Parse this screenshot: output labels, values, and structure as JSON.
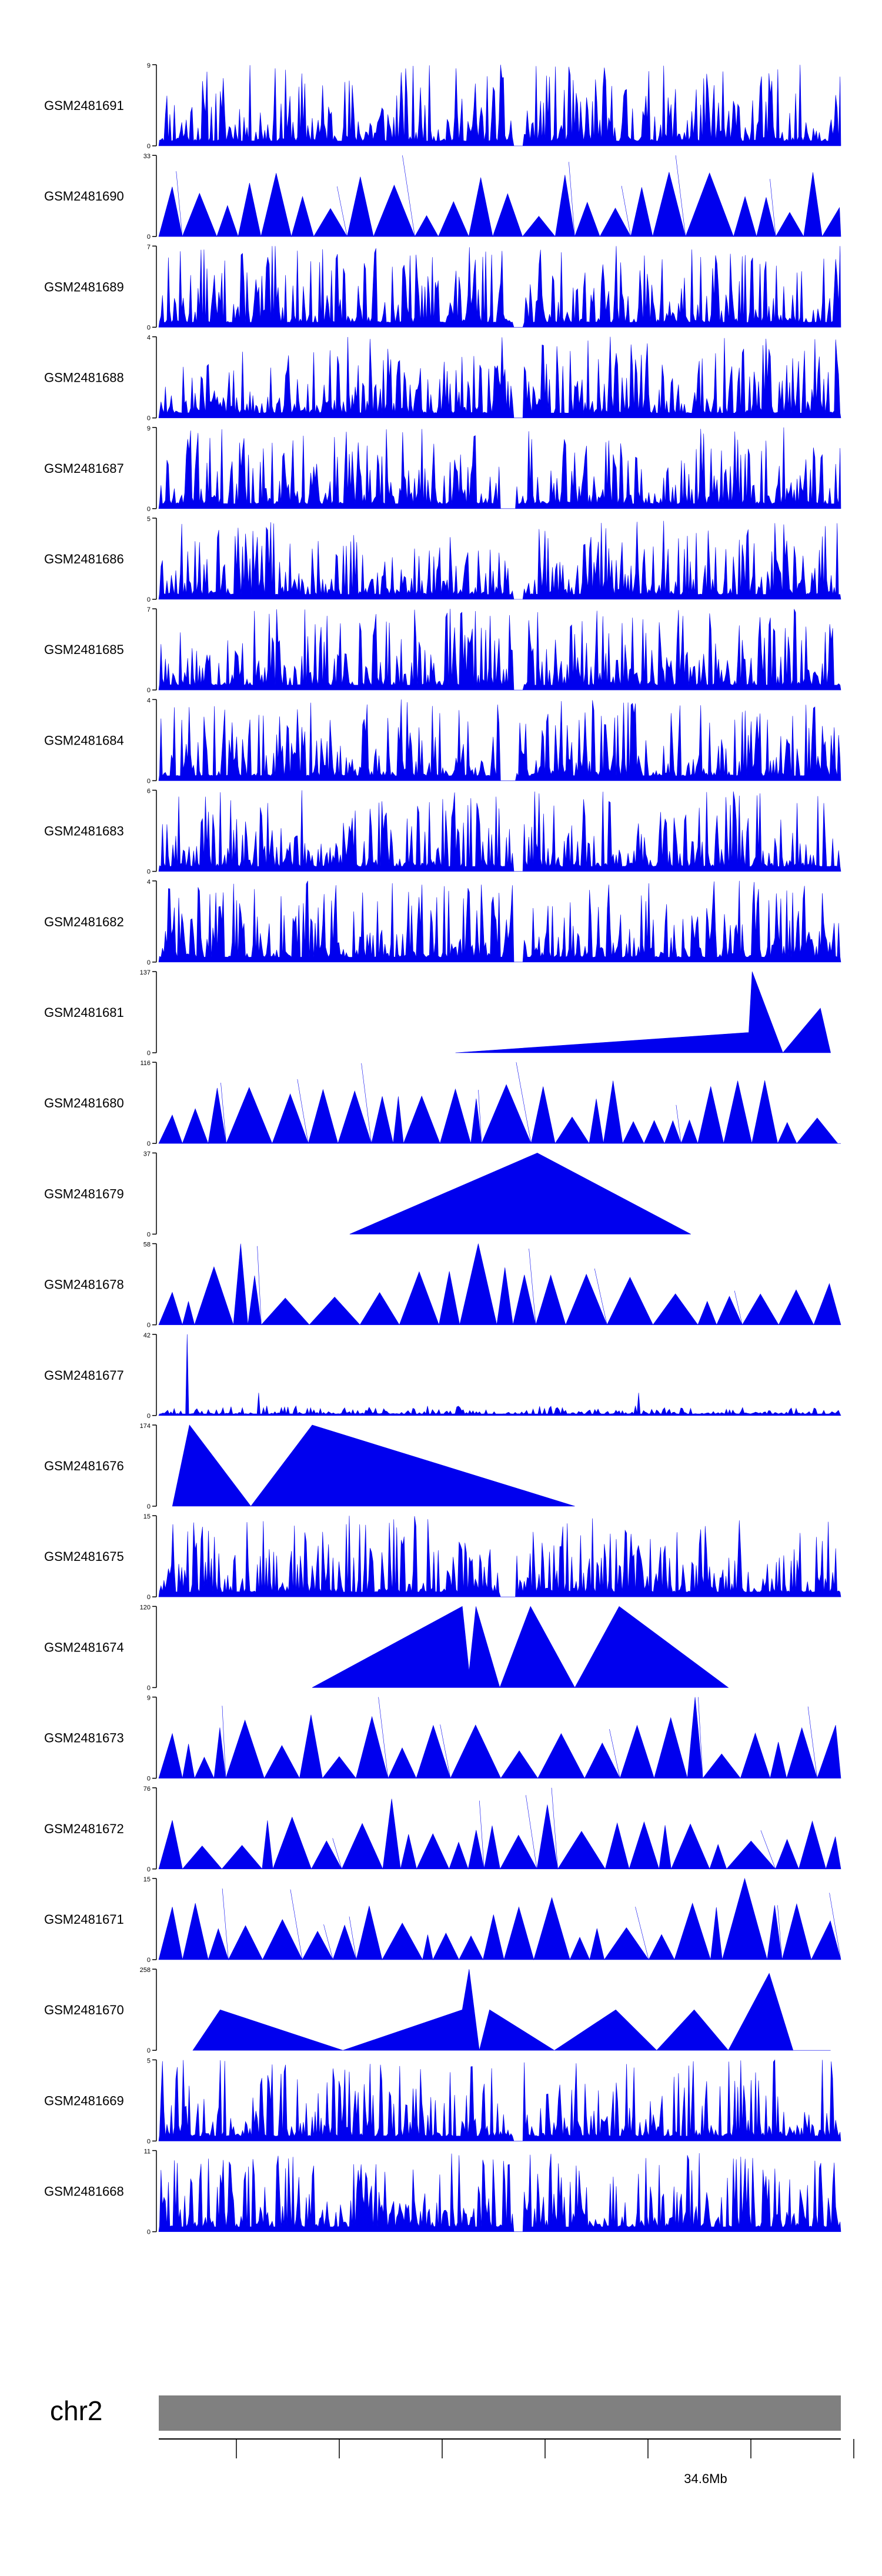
{
  "chart_data": {
    "type": "area",
    "title": "",
    "fill_color": "#0000ee",
    "axis_color": "#000000",
    "tracks": [
      {
        "name": "GSM2481691",
        "ymax": 9,
        "style": "dense",
        "seed": 11
      },
      {
        "name": "GSM2481690",
        "ymax": 33,
        "style": "spiky",
        "seed": 12
      },
      {
        "name": "GSM2481689",
        "ymax": 7,
        "style": "dense",
        "seed": 13
      },
      {
        "name": "GSM2481688",
        "ymax": 4,
        "style": "dense",
        "seed": 14
      },
      {
        "name": "GSM2481687",
        "ymax": 9,
        "style": "dense",
        "seed": 15
      },
      {
        "name": "GSM2481686",
        "ymax": 5,
        "style": "dense",
        "seed": 16
      },
      {
        "name": "GSM2481685",
        "ymax": 7,
        "style": "dense",
        "seed": 17
      },
      {
        "name": "GSM2481684",
        "ymax": 4,
        "style": "dense",
        "seed": 18
      },
      {
        "name": "GSM2481683",
        "ymax": 6,
        "style": "dense",
        "seed": 19
      },
      {
        "name": "GSM2481682",
        "ymax": 4,
        "style": "dense",
        "seed": 20
      },
      {
        "name": "GSM2481681",
        "ymax": 137,
        "style": "sparse",
        "points": [
          [
            0.435,
            0
          ],
          [
            0.865,
            0.25
          ],
          [
            0.87,
            1.0
          ],
          [
            0.915,
            0
          ],
          [
            0.97,
            0.55
          ],
          [
            0.985,
            0
          ]
        ]
      },
      {
        "name": "GSM2481680",
        "ymax": 116,
        "style": "spiky",
        "seed": 21
      },
      {
        "name": "GSM2481679",
        "ymax": 37,
        "style": "sparse",
        "points": [
          [
            0.28,
            0
          ],
          [
            0.555,
            1.0
          ],
          [
            0.78,
            0
          ]
        ]
      },
      {
        "name": "GSM2481678",
        "ymax": 58,
        "style": "spiky",
        "seed": 22
      },
      {
        "name": "GSM2481677",
        "ymax": 42,
        "style": "flat",
        "seed": 23
      },
      {
        "name": "GSM2481676",
        "ymax": 174,
        "style": "sparse",
        "points": [
          [
            0.02,
            0
          ],
          [
            0.045,
            1.0
          ],
          [
            0.135,
            0
          ],
          [
            0.225,
            1.0
          ],
          [
            0.61,
            0
          ]
        ]
      },
      {
        "name": "GSM2481675",
        "ymax": 15,
        "style": "dense",
        "seed": 24
      },
      {
        "name": "GSM2481674",
        "ymax": 120,
        "style": "sparse",
        "points": [
          [
            0.225,
            0
          ],
          [
            0.445,
            1.0
          ],
          [
            0.455,
            0.2
          ],
          [
            0.465,
            1.0
          ],
          [
            0.5,
            0
          ],
          [
            0.545,
            1.0
          ],
          [
            0.61,
            0
          ],
          [
            0.675,
            1.0
          ],
          [
            0.835,
            0
          ]
        ]
      },
      {
        "name": "GSM2481673",
        "ymax": 9,
        "style": "spiky",
        "seed": 25
      },
      {
        "name": "GSM2481672",
        "ymax": 76,
        "style": "spiky",
        "seed": 26
      },
      {
        "name": "GSM2481671",
        "ymax": 15,
        "style": "spiky",
        "seed": 27
      },
      {
        "name": "GSM2481670",
        "ymax": 258,
        "style": "sparse",
        "points": [
          [
            0.05,
            0
          ],
          [
            0.09,
            0.5
          ],
          [
            0.27,
            0
          ],
          [
            0.445,
            0.5
          ],
          [
            0.455,
            1.0
          ],
          [
            0.47,
            0
          ],
          [
            0.485,
            0.5
          ],
          [
            0.58,
            0
          ],
          [
            0.67,
            0.5
          ],
          [
            0.73,
            0
          ],
          [
            0.785,
            0.5
          ],
          [
            0.835,
            0
          ],
          [
            0.895,
            0.95
          ],
          [
            0.93,
            0
          ],
          [
            0.985,
            0
          ]
        ]
      },
      {
        "name": "GSM2481669",
        "ymax": 5,
        "style": "dense",
        "seed": 28
      },
      {
        "name": "GSM2481668",
        "ymax": 11,
        "style": "dense",
        "seed": 29
      }
    ],
    "chromosome": {
      "label": "chr2",
      "bar_color": "#808080",
      "tick_count": 7,
      "tick_label": "34.6Mb",
      "tick_label_index": 5
    }
  }
}
